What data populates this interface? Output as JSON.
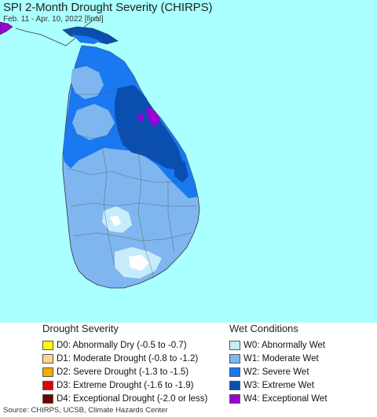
{
  "map": {
    "title": "SPI 2-Month Drought Severity (CHIRPS)",
    "subtitle": "Feb. 11 - Apr. 10, 2022 [final]",
    "colors": {
      "ocean": "#aaffff",
      "w0": "#c6ecf9",
      "w1": "#7fb6f0",
      "w2": "#1a78f0",
      "w3": "#0a4fb0",
      "w4": "#9a00d6",
      "land_other": "#ffffff"
    }
  },
  "legend": {
    "drought": {
      "heading": "Drought Severity",
      "items": [
        {
          "code": "D0",
          "label": "D0: Abnormally Dry (-0.5 to -0.7)",
          "color": "#ffff00"
        },
        {
          "code": "D1",
          "label": "D1: Moderate Drought (-0.8 to -1.2)",
          "color": "#fcd38f"
        },
        {
          "code": "D2",
          "label": "D2: Severe Drought (-1.3 to -1.5)",
          "color": "#ffaa00"
        },
        {
          "code": "D3",
          "label": "D3: Extreme Drought (-1.6 to -1.9)",
          "color": "#e60000"
        },
        {
          "code": "D4",
          "label": "D4: Exceptional Drought (-2.0 or less)",
          "color": "#730000"
        }
      ]
    },
    "wet": {
      "heading": "Wet Conditions",
      "items": [
        {
          "code": "W0",
          "label": "W0: Abnormally Wet",
          "color": "#c6ecf9"
        },
        {
          "code": "W1",
          "label": "W1: Moderate Wet",
          "color": "#7fb6f0"
        },
        {
          "code": "W2",
          "label": "W2: Severe Wet",
          "color": "#1a78f0"
        },
        {
          "code": "W3",
          "label": "W3: Extreme Wet",
          "color": "#0a4fb0"
        },
        {
          "code": "W4",
          "label": "W4: Exceptional Wet",
          "color": "#9a00d6"
        }
      ]
    }
  },
  "footer": {
    "source": "Source: CHIRPS, UCSB, Climate Hazards Center"
  }
}
